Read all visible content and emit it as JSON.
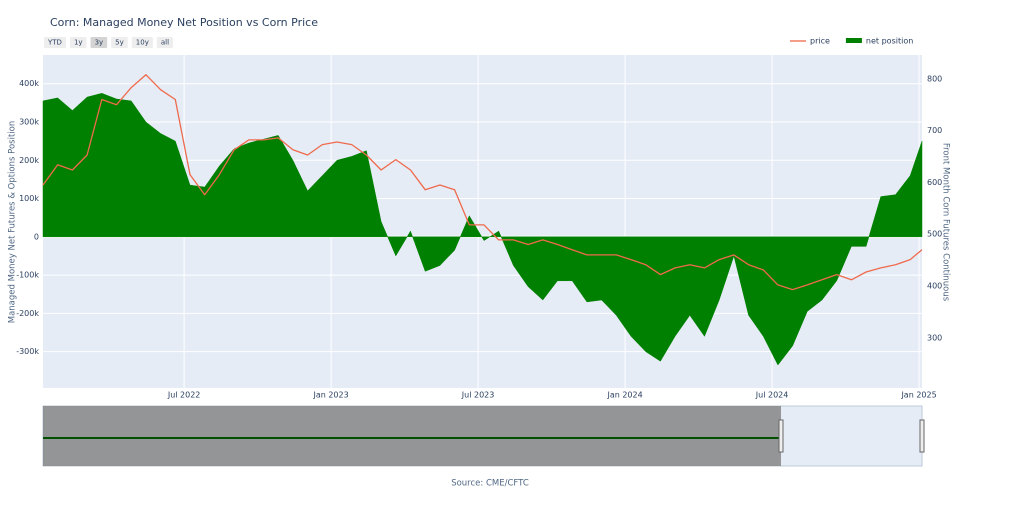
{
  "chart_data": {
    "type": "area_line",
    "title": "Corn: Managed Money Net Position vs Corn Price",
    "y_axis_title": "Managed Money Net Futures & Options Position",
    "y2_axis_title": "Front Month Corn Futures Continuous",
    "source": "Source: CME/CFTC",
    "range_selector": {
      "buttons": [
        "YTD",
        "1y",
        "3y",
        "5y",
        "10y",
        "all"
      ],
      "active": "3y"
    },
    "x": [
      2022.02,
      2022.07,
      2022.12,
      2022.17,
      2022.22,
      2022.27,
      2022.32,
      2022.37,
      2022.42,
      2022.47,
      2022.52,
      2022.57,
      2022.62,
      2022.67,
      2022.72,
      2022.77,
      2022.82,
      2022.87,
      2022.92,
      2022.97,
      2023.02,
      2023.07,
      2023.12,
      2023.17,
      2023.22,
      2023.27,
      2023.32,
      2023.37,
      2023.42,
      2023.47,
      2023.52,
      2023.57,
      2023.62,
      2023.67,
      2023.72,
      2023.77,
      2023.82,
      2023.87,
      2023.92,
      2023.97,
      2024.02,
      2024.07,
      2024.12,
      2024.17,
      2024.22,
      2024.27,
      2024.32,
      2024.37,
      2024.42,
      2024.47,
      2024.52,
      2024.57,
      2024.62,
      2024.67,
      2024.72,
      2024.77,
      2024.82,
      2024.87,
      2024.92,
      2024.97,
      2025.01
    ],
    "series": [
      {
        "name": "net position",
        "color": "#008000",
        "fill": true,
        "values": [
          355000,
          363000,
          330000,
          365000,
          375000,
          360000,
          355000,
          300000,
          270000,
          250000,
          135000,
          130000,
          185000,
          230000,
          245000,
          255000,
          265000,
          200000,
          120000,
          160000,
          200000,
          210000,
          225000,
          40000,
          -50000,
          15000,
          -90000,
          -75000,
          -35000,
          55000,
          -10000,
          15000,
          -75000,
          -130000,
          -165000,
          -115000,
          -115000,
          -170000,
          -165000,
          -205000,
          -260000,
          -300000,
          -325000,
          -260000,
          -205000,
          -260000,
          -165000,
          -50000,
          -205000,
          -260000,
          -335000,
          -285000,
          -195000,
          -165000,
          -115000,
          -25000,
          -25000,
          105000,
          110000,
          160000,
          250000
        ]
      },
      {
        "name": "price",
        "color": "#ef6a4c",
        "axis": "y2",
        "fill": false,
        "values": [
          595,
          634,
          624,
          653,
          760,
          750,
          783,
          808,
          779,
          760,
          615,
          576,
          615,
          663,
          682,
          682,
          686,
          663,
          653,
          673,
          678,
          673,
          653,
          624,
          644,
          624,
          586,
          595,
          586,
          518,
          518,
          489,
          489,
          480,
          489,
          480,
          470,
          460,
          460,
          460,
          451,
          441,
          422,
          435,
          441,
          435,
          451,
          460,
          441,
          431,
          402,
          393,
          402,
          412,
          422,
          412,
          427,
          435,
          441,
          451,
          470
        ]
      }
    ],
    "xlim": [
      2022.02,
      2025.01
    ],
    "xticks": [
      {
        "value": 2022.5,
        "label": "Jul 2022"
      },
      {
        "value": 2023,
        "label": "Jan 2023"
      },
      {
        "value": 2023.5,
        "label": "Jul 2023"
      },
      {
        "value": 2024,
        "label": "Jan 2024"
      },
      {
        "value": 2024.5,
        "label": "Jul 2024"
      },
      {
        "value": 2025,
        "label": "Jan 2025"
      }
    ],
    "ylim": [
      -395000,
      475000
    ],
    "yticks": [
      {
        "value": -300000,
        "label": "-300k"
      },
      {
        "value": -200000,
        "label": "-200k"
      },
      {
        "value": -100000,
        "label": "-100k"
      },
      0,
      {
        "value": 100000,
        "label": "100k"
      },
      {
        "value": 200000,
        "label": "200k"
      },
      {
        "value": 300000,
        "label": "300k"
      },
      {
        "value": 400000,
        "label": "400k"
      }
    ],
    "y2lim": [
      203,
      846
    ],
    "y2ticks": [
      300,
      400,
      500,
      600,
      700,
      800
    ],
    "grid": true,
    "legend": "top-right"
  }
}
